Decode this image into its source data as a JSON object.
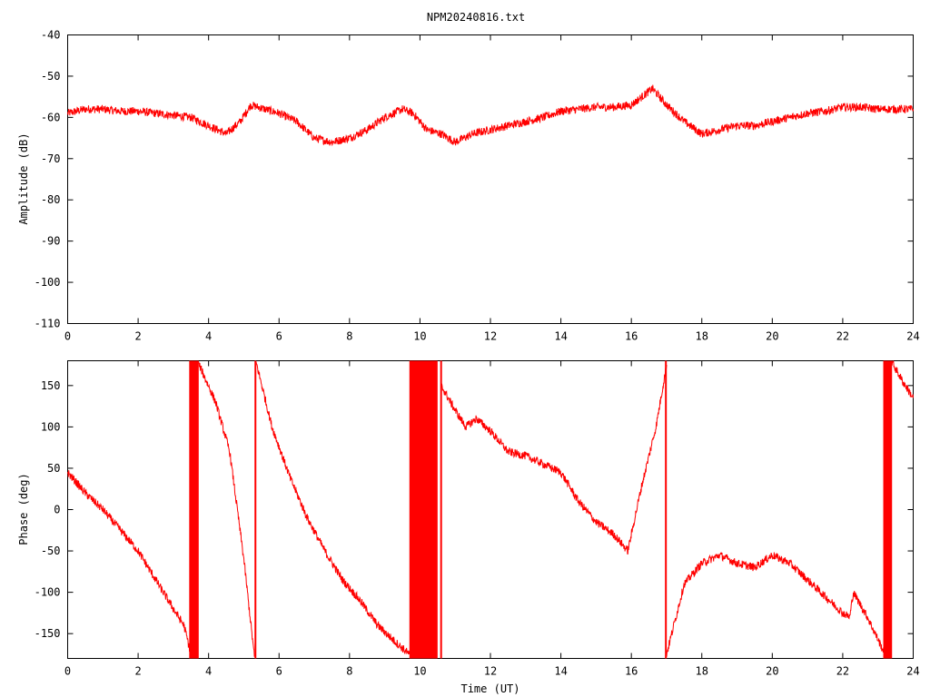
{
  "chart_data": [
    {
      "type": "line",
      "title": "NPM20240816.txt",
      "xlabel": "",
      "ylabel": "Amplitude (dB)",
      "xlim": [
        0,
        24
      ],
      "ylim": [
        -110,
        -40
      ],
      "x_ticks": [
        "0",
        "2",
        "4",
        "6",
        "8",
        "10",
        "12",
        "14",
        "16",
        "18",
        "20",
        "22",
        "24"
      ],
      "y_ticks": [
        "-40",
        "-50",
        "-60",
        "-70",
        "-80",
        "-90",
        "-100",
        "-110"
      ],
      "grid": false,
      "color": "#ff0000",
      "series": [
        {
          "x": [
            0,
            0.5,
            1.0,
            1.5,
            2.0,
            2.5,
            3.0,
            3.5,
            4.0,
            4.5,
            4.9,
            5.2,
            5.6,
            6.0,
            6.5,
            7.0,
            7.5,
            8.0,
            8.5,
            9.0,
            9.5,
            9.8,
            10.2,
            10.6,
            11.0,
            11.5,
            12.0,
            12.5,
            13.0,
            13.5,
            14.0,
            14.5,
            15.0,
            15.5,
            16.0,
            16.3,
            16.6,
            17.0,
            17.5,
            18.0,
            18.5,
            19.0,
            19.5,
            20.0,
            20.5,
            21.0,
            21.5,
            22.0,
            22.5,
            23.0,
            23.5,
            24.0
          ],
          "y": [
            -59,
            -58,
            -58,
            -58.5,
            -58.5,
            -59,
            -59.5,
            -60,
            -62,
            -64,
            -61,
            -57,
            -58,
            -59,
            -61,
            -65,
            -66,
            -65,
            -63,
            -60,
            -58,
            -59,
            -63,
            -64,
            -66,
            -64,
            -63,
            -62,
            -61,
            -60,
            -58.5,
            -58,
            -57.5,
            -57.5,
            -57,
            -55,
            -53,
            -57,
            -61,
            -64,
            -63,
            -62,
            -62,
            -61,
            -60,
            -59,
            -58.5,
            -57.5,
            -57.5,
            -58,
            -58,
            -58
          ],
          "band": 1.5
        }
      ]
    },
    {
      "type": "line",
      "title": "",
      "xlabel": "Time (UT)",
      "ylabel": "Phase (deg)",
      "xlim": [
        0,
        24
      ],
      "ylim": [
        -180,
        180
      ],
      "x_ticks": [
        "0",
        "2",
        "4",
        "6",
        "8",
        "10",
        "12",
        "14",
        "16",
        "18",
        "20",
        "22",
        "24"
      ],
      "y_ticks": [
        "150",
        "100",
        "50",
        "0",
        "-50",
        "-100",
        "-150"
      ],
      "grid": false,
      "color": "#ff0000",
      "segments": [
        {
          "x": [
            0,
            0.5,
            1.0,
            1.5,
            2.0,
            2.5,
            3.0,
            3.3,
            3.5
          ],
          "y": [
            45,
            20,
            0,
            -25,
            -50,
            -85,
            -120,
            -140,
            -175
          ]
        },
        {
          "x": [
            3.7,
            4.2,
            4.6,
            5.0,
            5.3
          ],
          "y": [
            178,
            130,
            70,
            -60,
            -178
          ]
        },
        {
          "x": [
            5.35,
            5.8,
            6.3,
            6.8,
            7.3,
            7.8,
            8.3,
            8.8,
            9.3,
            9.7
          ],
          "y": [
            178,
            100,
            40,
            -10,
            -50,
            -85,
            -110,
            -140,
            -160,
            -175
          ]
        },
        {
          "x": [
            10.6,
            11.0,
            11.3,
            11.6,
            12.0,
            12.5,
            13.0,
            13.5,
            14.0,
            14.5,
            15.0,
            15.5,
            15.9
          ],
          "y": [
            150,
            120,
            100,
            110,
            95,
            70,
            65,
            55,
            45,
            10,
            -15,
            -30,
            -50
          ]
        },
        {
          "x": [
            15.9,
            16.3,
            16.7,
            17.0
          ],
          "y": [
            -50,
            30,
            100,
            175
          ]
        },
        {
          "x": [
            17.0,
            17.5,
            18.0,
            18.5,
            19.0,
            19.5,
            20.0,
            20.5,
            21.0,
            21.5,
            22.0,
            22.2,
            22.3,
            22.7,
            23.2
          ],
          "y": [
            -175,
            -90,
            -65,
            -55,
            -65,
            -70,
            -55,
            -65,
            -85,
            -105,
            -125,
            -130,
            -100,
            -130,
            -175
          ]
        },
        {
          "x": [
            23.4,
            23.7,
            24.0
          ],
          "y": [
            178,
            155,
            135
          ]
        }
      ],
      "blocks": [
        {
          "x0": 3.45,
          "x1": 3.72
        },
        {
          "x0": 9.7,
          "x1": 10.5
        },
        {
          "x0": 23.15,
          "x1": 23.4
        }
      ],
      "vlines": [
        5.33,
        10.6,
        16.98
      ],
      "band": 5
    }
  ]
}
